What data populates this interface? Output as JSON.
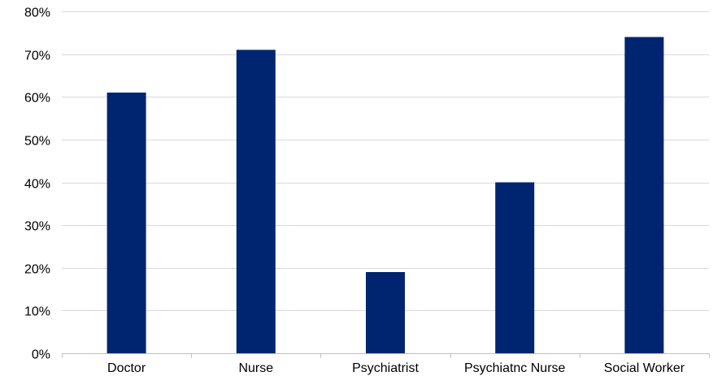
{
  "chart_data": {
    "type": "bar",
    "categories": [
      "Doctor",
      "Nurse",
      "Psychiatrist",
      "Psychiatnc Nurse",
      "Social Worker"
    ],
    "series": [
      {
        "values": [
          0.61,
          0.71,
          0.19,
          0.4,
          0.74
        ]
      }
    ],
    "yticks": [
      "0%",
      "10%",
      "20%",
      "30%",
      "40%",
      "50%",
      "60%",
      "70%",
      "80%"
    ],
    "ylim": [
      0,
      0.8
    ],
    "grid": true,
    "bar_color": "#002570",
    "grid_color": "#d9d9d9",
    "axis_color": "#bfbfbf"
  }
}
